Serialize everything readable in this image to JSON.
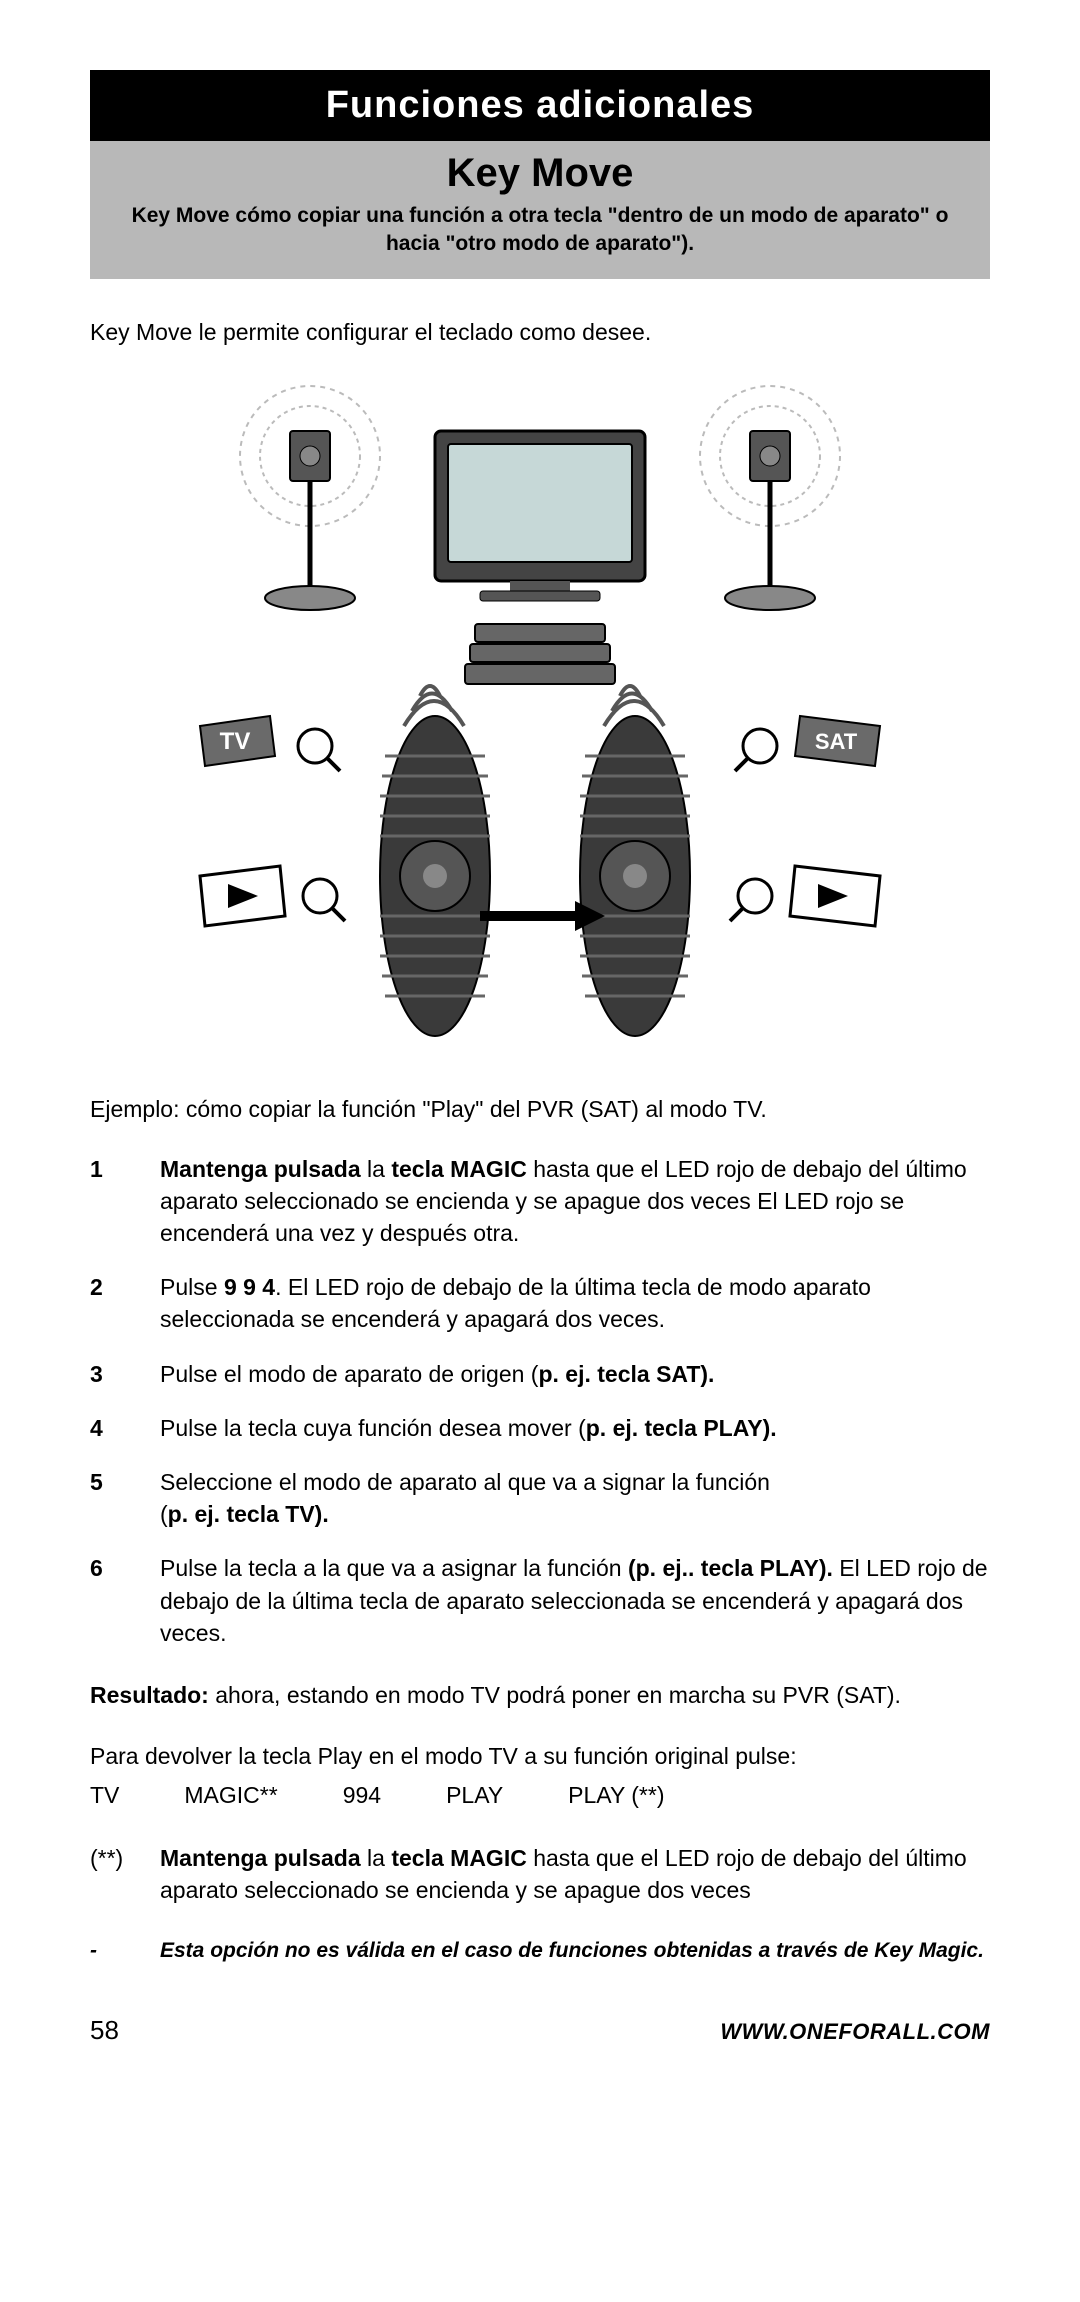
{
  "header": {
    "band": "Funciones adicionales",
    "sectionTitle": "Key Move",
    "sectionSub": "Key Move cómo copiar una función a otra tecla \"dentro de un modo de aparato\" o hacia \"otro modo de aparato\")."
  },
  "intro": "Key Move le permite configurar el teclado como desee.",
  "illustration": {
    "labels": {
      "tv": "TV",
      "sat": "SAT"
    },
    "colors": {
      "tvScreen": "#c6d8d7",
      "remoteBody": "#3a3a3a",
      "remoteRidge": "#555555",
      "labelBg": "#6a6a6a",
      "labelText": "#ffffff",
      "outline": "#000000",
      "waveStroke": "#888888"
    }
  },
  "example": "Ejemplo: cómo copiar la función \"Play\" del PVR (SAT) al modo TV.",
  "steps": [
    {
      "num": "1",
      "html": "<b>Mantenga pulsada</b> la <b>tecla MAGIC</b> hasta que el LED rojo de debajo del último aparato seleccionado se encienda y se apague dos veces El LED rojo se encenderá una vez y después otra."
    },
    {
      "num": "2",
      "html": "Pulse <b>9 9 4</b>. El LED rojo de debajo de la última tecla de modo aparato seleccionada se encenderá y apagará dos veces."
    },
    {
      "num": "3",
      "html": "Pulse el modo de aparato de origen (<b>p. ej. tecla SAT).</b>"
    },
    {
      "num": "4",
      "html": "Pulse la tecla cuya función desea mover (<b>p. ej. tecla PLAY).</b>"
    },
    {
      "num": "5",
      "html": "Seleccione el modo de aparato al que va a signar la función<br>(<b>p. ej. tecla TV).</b>"
    },
    {
      "num": "6",
      "html": "Pulse la tecla a la que va a asignar la función <b>(p. ej.. tecla PLAY).</b> El LED rojo de debajo de la última tecla de aparato seleccionada se encenderá y apagará dos veces."
    }
  ],
  "result": {
    "label": "Resultado:",
    "text": " ahora, estando en modo TV podrá poner en marcha su PVR (SAT)."
  },
  "restore": {
    "intro": "Para devolver la tecla Play en el modo TV a su función original pulse:",
    "seq": [
      "TV",
      "MAGIC**",
      "994",
      "PLAY",
      "PLAY (**)"
    ]
  },
  "footnote": {
    "mark": "(**)",
    "html": "<b>Mantenga pulsada</b> la <b>tecla MAGIC</b> hasta que el LED rojo de debajo del último aparato seleccionado se encienda y se apague dos veces"
  },
  "disclaimer": {
    "dash": "-",
    "text": "Esta opción no es válida en el caso de funciones obtenidas a través de Key Magic."
  },
  "footer": {
    "page": "58",
    "site": "WWW.ONEFORALL.COM"
  }
}
